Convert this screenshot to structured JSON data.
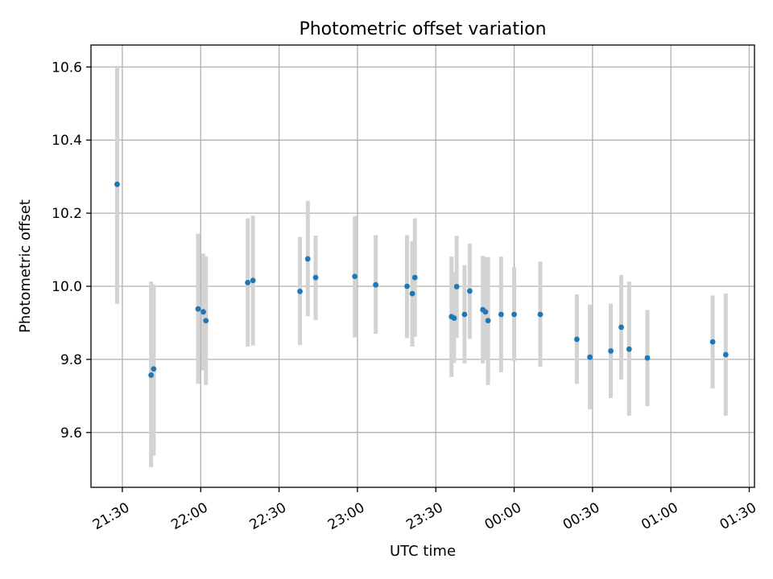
{
  "chart_data": {
    "type": "scatter",
    "title": "Photometric offset variation",
    "xlabel": "UTC time",
    "ylabel": "Photometric offset",
    "x_ticks": [
      "21:30",
      "22:00",
      "22:30",
      "23:00",
      "23:30",
      "00:00",
      "00:30",
      "01:00",
      "01:30"
    ],
    "y_ticks": [
      "9.6",
      "9.8",
      "10.0",
      "10.2",
      "10.4",
      "10.6"
    ],
    "xlim": [
      "21:18",
      "01:32"
    ],
    "ylim": [
      9.45,
      10.66
    ],
    "grid": true,
    "marker_color": "#1f77b4",
    "errorbar_color": "#d3d3d3",
    "series": [
      {
        "points": [
          {
            "x": "21:28",
            "y": 10.279,
            "lo": 9.952,
            "hi": 10.603
          },
          {
            "x": "21:41",
            "y": 9.757,
            "lo": 9.505,
            "hi": 10.013
          },
          {
            "x": "21:42",
            "y": 9.774,
            "lo": 9.537,
            "hi": 10.005
          },
          {
            "x": "21:59",
            "y": 9.938,
            "lo": 9.733,
            "hi": 10.144
          },
          {
            "x": "22:01",
            "y": 9.93,
            "lo": 9.77,
            "hi": 10.09
          },
          {
            "x": "22:02",
            "y": 9.906,
            "lo": 9.73,
            "hi": 10.082
          },
          {
            "x": "22:18",
            "y": 10.01,
            "lo": 9.835,
            "hi": 10.186
          },
          {
            "x": "22:20",
            "y": 10.016,
            "lo": 9.838,
            "hi": 10.193
          },
          {
            "x": "22:38",
            "y": 9.986,
            "lo": 9.839,
            "hi": 10.135
          },
          {
            "x": "22:41",
            "y": 10.075,
            "lo": 9.918,
            "hi": 10.234
          },
          {
            "x": "22:44",
            "y": 10.024,
            "lo": 9.908,
            "hi": 10.139
          },
          {
            "x": "22:59",
            "y": 10.027,
            "lo": 9.86,
            "hi": 10.192
          },
          {
            "x": "23:07",
            "y": 10.004,
            "lo": 9.87,
            "hi": 10.14
          },
          {
            "x": "23:19",
            "y": 10.0,
            "lo": 9.858,
            "hi": 10.14
          },
          {
            "x": "23:21",
            "y": 9.98,
            "lo": 9.835,
            "hi": 10.123
          },
          {
            "x": "23:22",
            "y": 10.024,
            "lo": 9.862,
            "hi": 10.186
          },
          {
            "x": "23:36",
            "y": 9.917,
            "lo": 9.752,
            "hi": 10.081
          },
          {
            "x": "23:37",
            "y": 9.913,
            "lo": 9.79,
            "hi": 10.04
          },
          {
            "x": "23:38",
            "y": 9.999,
            "lo": 9.858,
            "hi": 10.138
          },
          {
            "x": "23:41",
            "y": 9.923,
            "lo": 9.789,
            "hi": 10.058
          },
          {
            "x": "23:43",
            "y": 9.987,
            "lo": 9.856,
            "hi": 10.117
          },
          {
            "x": "23:48",
            "y": 9.936,
            "lo": 9.789,
            "hi": 10.083
          },
          {
            "x": "23:49",
            "y": 9.93,
            "lo": 9.8,
            "hi": 10.08
          },
          {
            "x": "23:50",
            "y": 9.906,
            "lo": 9.73,
            "hi": 10.08
          },
          {
            "x": "23:55",
            "y": 9.923,
            "lo": 9.765,
            "hi": 10.081
          },
          {
            "x": "00:00",
            "y": 9.923,
            "lo": 9.795,
            "hi": 10.052
          },
          {
            "x": "00:10",
            "y": 9.923,
            "lo": 9.78,
            "hi": 10.068
          },
          {
            "x": "00:24",
            "y": 9.855,
            "lo": 9.733,
            "hi": 9.978
          },
          {
            "x": "00:29",
            "y": 9.806,
            "lo": 9.663,
            "hi": 9.95
          },
          {
            "x": "00:37",
            "y": 9.823,
            "lo": 9.694,
            "hi": 9.953
          },
          {
            "x": "00:41",
            "y": 9.888,
            "lo": 9.745,
            "hi": 10.031
          },
          {
            "x": "00:44",
            "y": 9.828,
            "lo": 9.646,
            "hi": 10.013
          },
          {
            "x": "00:51",
            "y": 9.804,
            "lo": 9.672,
            "hi": 9.935
          },
          {
            "x": "01:16",
            "y": 9.848,
            "lo": 9.72,
            "hi": 9.975
          },
          {
            "x": "01:21",
            "y": 9.813,
            "lo": 9.646,
            "hi": 9.98
          }
        ]
      }
    ]
  }
}
